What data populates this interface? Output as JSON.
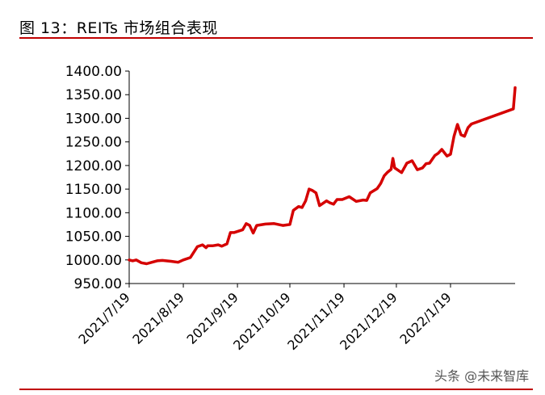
{
  "figure": {
    "title": "图 13：REITs 市场组合表现",
    "watermark": "头条 @未来智库"
  },
  "colors": {
    "accent": "#c00000",
    "line": "#d50000",
    "axis": "#000000"
  },
  "chart_data": {
    "type": "line",
    "title": "",
    "xlabel": "",
    "ylabel": "",
    "ylim": [
      950,
      1400
    ],
    "yticks": [
      950,
      1000,
      1050,
      1100,
      1150,
      1200,
      1250,
      1300,
      1350,
      1400
    ],
    "ytick_labels": [
      "950.00",
      "1000.00",
      "1050.00",
      "1100.00",
      "1150.00",
      "1200.00",
      "1250.00",
      "1300.00",
      "1350.00",
      "1400.00"
    ],
    "x_range": [
      "2021-07-19",
      "2022-02-25"
    ],
    "xticks": [
      "2021-07-19",
      "2021-08-19",
      "2021-09-19",
      "2021-10-19",
      "2021-11-19",
      "2021-12-19",
      "2022-01-19"
    ],
    "xtick_labels": [
      "2021/7/19",
      "2021/8/19",
      "2021/9/19",
      "2021/10/19",
      "2021/11/19",
      "2021/12/19",
      "2022/1/19"
    ],
    "grid": false,
    "legend": "none",
    "series": [
      {
        "x": [
          "2021-07-19",
          "2021-07-21",
          "2021-07-23",
          "2021-07-26",
          "2021-07-29",
          "2021-08-01",
          "2021-08-04",
          "2021-08-07",
          "2021-08-12",
          "2021-08-16",
          "2021-08-19",
          "2021-08-23",
          "2021-08-27",
          "2021-08-30",
          "2021-09-01",
          "2021-09-02",
          "2021-09-05",
          "2021-09-08",
          "2021-09-10",
          "2021-09-13",
          "2021-09-15",
          "2021-09-17",
          "2021-09-22",
          "2021-09-24",
          "2021-09-26",
          "2021-09-28",
          "2021-09-30",
          "2021-10-05",
          "2021-10-10",
          "2021-10-15",
          "2021-10-19",
          "2021-10-21",
          "2021-10-24",
          "2021-10-26",
          "2021-10-28",
          "2021-10-30",
          "2021-11-01",
          "2021-11-03",
          "2021-11-05",
          "2021-11-09",
          "2021-11-11",
          "2021-11-13",
          "2021-11-15",
          "2021-11-18",
          "2021-11-22",
          "2021-11-26",
          "2021-11-30",
          "2021-12-02",
          "2021-12-04",
          "2021-12-08",
          "2021-12-10",
          "2021-12-12",
          "2021-12-14",
          "2021-12-16",
          "2021-12-17",
          "2021-12-18",
          "2021-12-22",
          "2021-12-25",
          "2021-12-28",
          "2021-12-31",
          "2022-01-03",
          "2022-01-05",
          "2022-01-07",
          "2022-01-10",
          "2022-01-12",
          "2022-01-14",
          "2022-01-17",
          "2022-01-19",
          "2022-01-21",
          "2022-01-23",
          "2022-01-25",
          "2022-01-27",
          "2022-01-29",
          "2022-01-31",
          "2022-02-24",
          "2022-02-25"
        ],
        "values": [
          1000,
          998,
          1000,
          994,
          992,
          995,
          998,
          999,
          997,
          995,
          1000,
          1005,
          1028,
          1032,
          1026,
          1030,
          1030,
          1032,
          1029,
          1034,
          1058,
          1058,
          1064,
          1077,
          1073,
          1057,
          1073,
          1076,
          1077,
          1073,
          1075,
          1105,
          1113,
          1111,
          1125,
          1150,
          1147,
          1142,
          1115,
          1125,
          1121,
          1118,
          1128,
          1128,
          1134,
          1124,
          1127,
          1126,
          1142,
          1151,
          1162,
          1178,
          1186,
          1192,
          1215,
          1195,
          1185,
          1205,
          1210,
          1191,
          1195,
          1204,
          1205,
          1221,
          1226,
          1234,
          1220,
          1224,
          1262,
          1287,
          1265,
          1262,
          1280,
          1288,
          1320,
          1365
        ]
      }
    ]
  }
}
